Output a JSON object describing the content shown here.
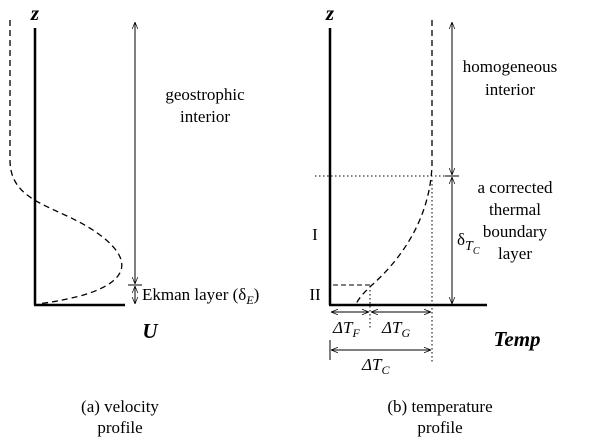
{
  "panel_a": {
    "axis_label_z": "z",
    "axis_label_x": "U",
    "region_top": [
      "geostrophic",
      "interior"
    ],
    "region_bottom": {
      "text": "Ekman layer (δ",
      "sub": "E",
      "close": ")"
    },
    "caption": [
      "(a) velocity",
      "profile"
    ]
  },
  "panel_b": {
    "axis_label_z": "z",
    "axis_label_x": "Temp",
    "region_top": [
      "homogeneous",
      "interior"
    ],
    "region_bottom": [
      "a corrected",
      "thermal",
      "boundary",
      "layer"
    ],
    "thickness": {
      "text": "δ",
      "sub": "T",
      "subsub": "C"
    },
    "layer_1": "I",
    "layer_2": "II",
    "delta_f": {
      "text": "ΔT",
      "sub": "F"
    },
    "delta_g": {
      "text": "ΔT",
      "sub": "G"
    },
    "delta_c": {
      "text": "ΔT",
      "sub": "C"
    },
    "caption": [
      "(b) temperature",
      "profile"
    ]
  }
}
